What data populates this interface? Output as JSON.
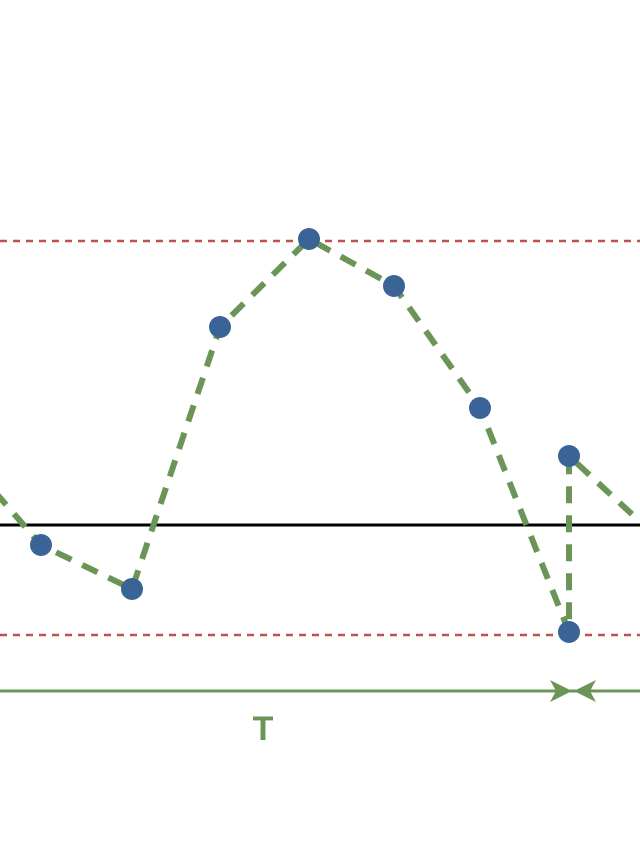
{
  "diagram": {
    "period_label": "T",
    "colors": {
      "background": "#ffffff",
      "baseline": "#000000",
      "bound_lines": "#c0504d",
      "signal": "#6b9556",
      "markers": "#3a6496",
      "period_arrow": "#6b9556"
    }
  }
}
